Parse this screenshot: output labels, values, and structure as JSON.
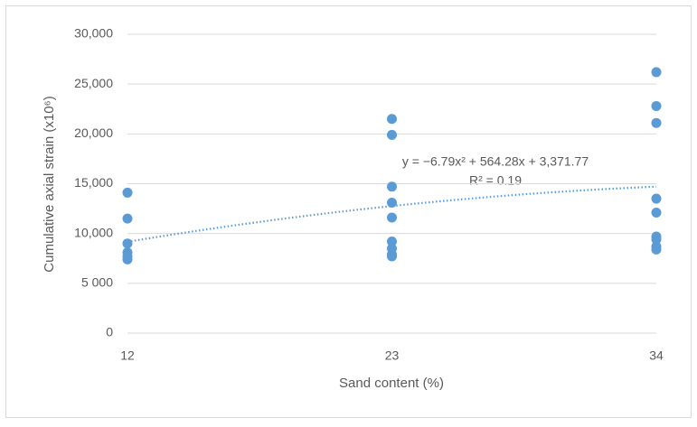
{
  "chart_data": {
    "type": "scatter",
    "x_label": "Sand content (%)",
    "y_label": "Cumulative axial strain (x10⁶)",
    "x": [
      12,
      12,
      12,
      12,
      12,
      12,
      23,
      23,
      23,
      23,
      23,
      23,
      23,
      23,
      23,
      34,
      34,
      34,
      34,
      34,
      34,
      34,
      34,
      34
    ],
    "values": [
      14100,
      11500,
      9000,
      8100,
      7700,
      7400,
      21500,
      19900,
      14700,
      13100,
      11600,
      9200,
      8500,
      7900,
      7700,
      26200,
      22800,
      21100,
      13500,
      12100,
      9700,
      9400,
      8700,
      8400
    ],
    "color": "#5b9bd5",
    "xlim": [
      12,
      34
    ],
    "xticks": [
      12,
      23,
      34
    ],
    "ylim": [
      0,
      30000
    ],
    "yticks": [
      0,
      {
        "value": 5000,
        "label": "5 000"
      },
      {
        "value": 10000,
        "label": "10,000"
      },
      {
        "value": 15000,
        "label": "15,000"
      },
      {
        "value": 20000,
        "label": "20,000"
      },
      {
        "value": 25000,
        "label": "25,000"
      },
      {
        "value": 30000,
        "label": "30,000"
      }
    ],
    "grid": true,
    "trendline": {
      "type": "polynomial",
      "coefficients": [
        -6.79,
        564.28,
        3371.77
      ],
      "equation": "y = −6.79x² + 564.28x + 3,371.77",
      "r2_label": "R² = 0.19",
      "color": "#5b9bd5"
    }
  }
}
